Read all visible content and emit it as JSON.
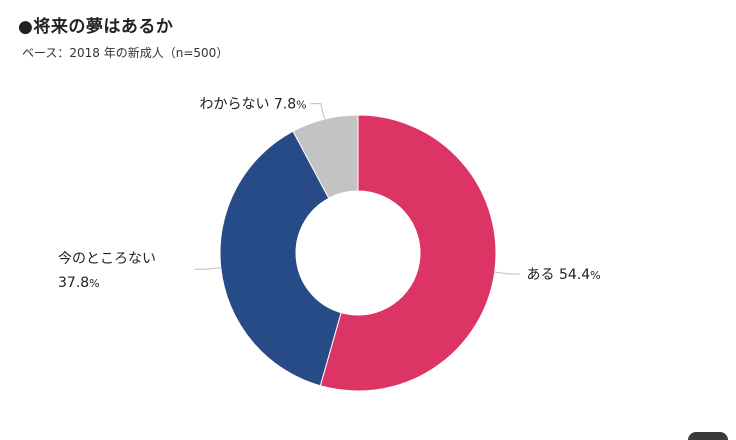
{
  "header": {
    "title": "●将来の夢はあるか",
    "subtitle": "ベース：2018 年の新成人（n=500）"
  },
  "chart_data": {
    "type": "pie",
    "variant": "donut",
    "title": "●将来の夢はあるか",
    "subtitle": "ベース：2018 年の新成人（n=500）",
    "unit": "%",
    "slices": [
      {
        "label": "ある",
        "value": 54.4,
        "color": "#dc3464"
      },
      {
        "label": "今のところない",
        "value": 37.8,
        "color": "#264b86"
      },
      {
        "label": "わからない",
        "value": 7.8,
        "color": "#c3c3c3"
      }
    ]
  }
}
